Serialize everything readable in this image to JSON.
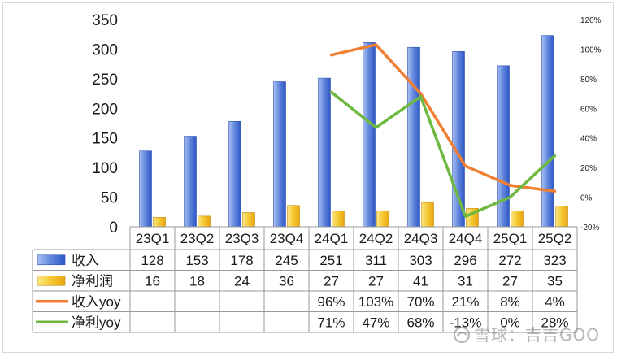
{
  "chart_data": {
    "type": "bar",
    "categories": [
      "23Q1",
      "23Q2",
      "23Q3",
      "23Q4",
      "24Q1",
      "24Q2",
      "24Q3",
      "24Q4",
      "25Q1",
      "25Q2"
    ],
    "series": [
      {
        "name": "收入",
        "kind": "bar",
        "axis": "left",
        "values": [
          128,
          153,
          178,
          245,
          251,
          311,
          303,
          296,
          272,
          323
        ],
        "labels": [
          "128",
          "153",
          "178",
          "245",
          "251",
          "311",
          "303",
          "296",
          "272",
          "323"
        ],
        "color": "#4a72d6"
      },
      {
        "name": "净利润",
        "kind": "bar",
        "axis": "left",
        "values": [
          16,
          18,
          24,
          36,
          27,
          27,
          41,
          31,
          27,
          35
        ],
        "labels": [
          "16",
          "18",
          "24",
          "36",
          "27",
          "27",
          "41",
          "31",
          "27",
          "35"
        ],
        "color": "#f2c12e"
      },
      {
        "name": "收入yoy",
        "kind": "line",
        "axis": "right",
        "values": [
          null,
          null,
          null,
          null,
          96,
          103,
          70,
          21,
          8,
          4
        ],
        "labels": [
          "",
          "",
          "",
          "",
          "96%",
          "103%",
          "70%",
          "21%",
          "8%",
          "4%"
        ],
        "color": "#f07f32"
      },
      {
        "name": "净利yoy",
        "kind": "line",
        "axis": "right",
        "values": [
          null,
          null,
          null,
          null,
          71,
          47,
          68,
          -13,
          0,
          28
        ],
        "labels": [
          "",
          "",
          "",
          "",
          "71%",
          "47%",
          "68%",
          "-13%",
          "0%",
          "28%"
        ],
        "color": "#6db93f"
      }
    ],
    "ylim": [
      0,
      350
    ],
    "yticks": [
      "0",
      "50",
      "100",
      "150",
      "200",
      "250",
      "300",
      "350"
    ],
    "y2lim": [
      -20,
      120
    ],
    "y2ticks": [
      "-20%",
      "0%",
      "20%",
      "40%",
      "60%",
      "80%",
      "100%",
      "120%"
    ],
    "data_table": true,
    "grid": false
  },
  "watermark": "雪球：吉吉GOO"
}
